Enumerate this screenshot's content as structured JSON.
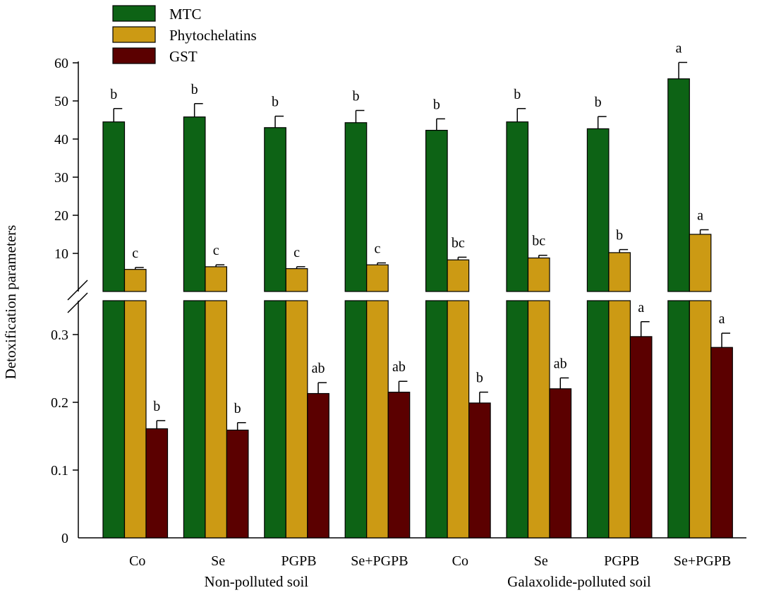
{
  "chart_data": {
    "type": "bar",
    "ylabel": "Detoxification parameters",
    "upper_axis": {
      "ylim": [
        0,
        60
      ],
      "ticks": [
        "10",
        "20",
        "30",
        "40",
        "50",
        "60"
      ]
    },
    "lower_axis": {
      "ylim": [
        0,
        0.35
      ],
      "ticks": [
        "0",
        "0.1",
        "0.2",
        "0.3"
      ]
    },
    "categories": [
      "Co",
      "Se",
      "PGPB",
      "Se+PGPB",
      "Co",
      "Se",
      "PGPB",
      "Se+PGPB"
    ],
    "groups": [
      {
        "label": "Non-polluted soil",
        "start": 0,
        "end": 3
      },
      {
        "label": "Galaxolide-polluted soil",
        "start": 4,
        "end": 7
      }
    ],
    "series": [
      {
        "name": "MTC",
        "color": "#0d6315",
        "axis": "upper",
        "values": [
          44.5,
          45.8,
          43.0,
          44.3,
          42.3,
          44.5,
          42.7,
          55.8
        ],
        "errors": [
          3.5,
          3.5,
          3.0,
          3.2,
          3.0,
          3.5,
          3.2,
          4.3
        ],
        "letters": [
          "b",
          "b",
          "b",
          "b",
          "b",
          "b",
          "b",
          "a"
        ]
      },
      {
        "name": "Phytochelatins",
        "color": "#cc9a14",
        "axis": "upper",
        "values": [
          5.8,
          6.5,
          6.0,
          7.0,
          8.3,
          8.8,
          10.2,
          15.0
        ],
        "errors": [
          0.5,
          0.5,
          0.5,
          0.5,
          0.7,
          0.7,
          0.8,
          1.2
        ],
        "letters": [
          "c",
          "c",
          "c",
          "c",
          "bc",
          "bc",
          "b",
          "a"
        ]
      },
      {
        "name": "GST",
        "color": "#5b0000",
        "axis": "lower",
        "values": [
          0.161,
          0.159,
          0.213,
          0.215,
          0.199,
          0.22,
          0.297,
          0.281
        ],
        "errors": [
          0.012,
          0.011,
          0.016,
          0.016,
          0.016,
          0.016,
          0.022,
          0.021
        ],
        "letters": [
          "b",
          "b",
          "ab",
          "ab",
          "b",
          "ab",
          "a",
          "a"
        ]
      }
    ],
    "legend": {
      "position": "top-left",
      "entries": [
        "MTC",
        "Phytochelatins",
        "GST"
      ]
    }
  }
}
